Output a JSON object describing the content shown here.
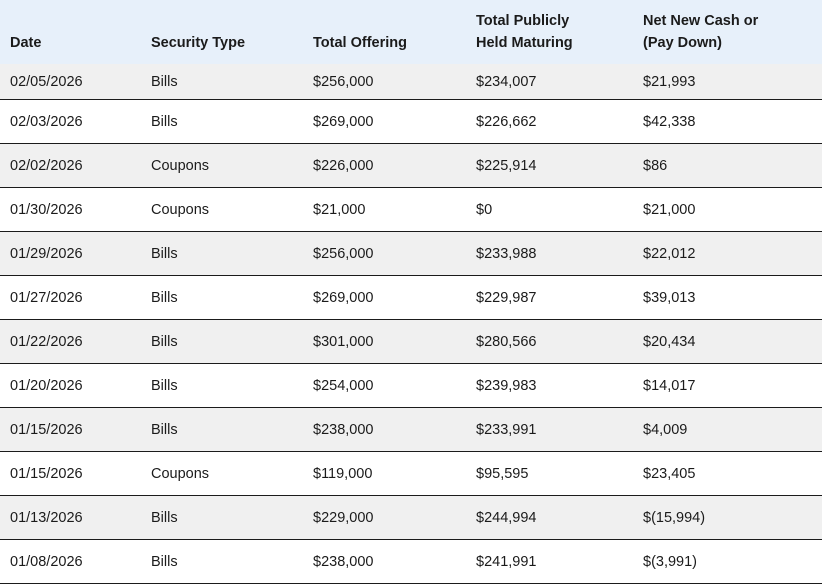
{
  "table": {
    "headers": {
      "date": "Date",
      "security_type": "Security Type",
      "total_offering": "Total Offering",
      "maturing_line1": "Total Publicly",
      "maturing_line2": "Held Maturing",
      "net_line1": "Net New Cash or",
      "net_line2": "(Pay Down)"
    },
    "rows": [
      {
        "date": "02/05/2026",
        "type": "Bills",
        "offering": "$256,000",
        "maturing": "$234,007",
        "net": "$21,993"
      },
      {
        "date": "02/03/2026",
        "type": "Bills",
        "offering": "$269,000",
        "maturing": "$226,662",
        "net": "$42,338"
      },
      {
        "date": "02/02/2026",
        "type": "Coupons",
        "offering": "$226,000",
        "maturing": "$225,914",
        "net": "$86"
      },
      {
        "date": "01/30/2026",
        "type": "Coupons",
        "offering": "$21,000",
        "maturing": "$0",
        "net": "$21,000"
      },
      {
        "date": "01/29/2026",
        "type": "Bills",
        "offering": "$256,000",
        "maturing": "$233,988",
        "net": "$22,012"
      },
      {
        "date": "01/27/2026",
        "type": "Bills",
        "offering": "$269,000",
        "maturing": "$229,987",
        "net": "$39,013"
      },
      {
        "date": "01/22/2026",
        "type": "Bills",
        "offering": "$301,000",
        "maturing": "$280,566",
        "net": "$20,434"
      },
      {
        "date": "01/20/2026",
        "type": "Bills",
        "offering": "$254,000",
        "maturing": "$239,983",
        "net": "$14,017"
      },
      {
        "date": "01/15/2026",
        "type": "Bills",
        "offering": "$238,000",
        "maturing": "$233,991",
        "net": "$4,009"
      },
      {
        "date": "01/15/2026",
        "type": "Coupons",
        "offering": "$119,000",
        "maturing": "$95,595",
        "net": "$23,405"
      },
      {
        "date": "01/13/2026",
        "type": "Bills",
        "offering": "$229,000",
        "maturing": "$244,994",
        "net": "$(15,994)"
      },
      {
        "date": "01/08/2026",
        "type": "Bills",
        "offering": "$238,000",
        "maturing": "$241,991",
        "net": "$(3,991)"
      }
    ]
  }
}
